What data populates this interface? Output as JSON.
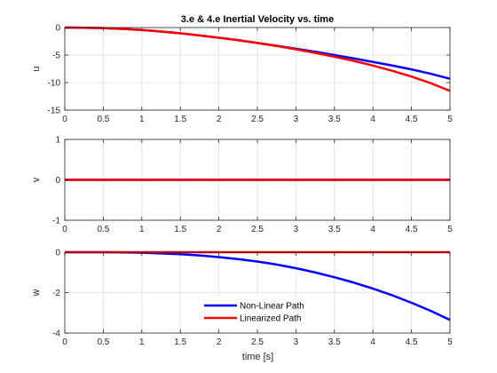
{
  "figure": {
    "background": "#ffffff",
    "axes_color": "#262626",
    "grid_color": "#dfdfdf",
    "series_colors": {
      "nonlinear": "#0000ff",
      "linearized": "#ff0000"
    },
    "xlabel": "time [s]",
    "legend": {
      "placement": "inside bottom-center of third subplot",
      "entries": [
        "Non-Linear Path",
        "Linearized Path"
      ]
    }
  },
  "chart_data": [
    {
      "type": "line",
      "title": "3.e & 4.e Inertial Velocity vs. time",
      "xlabel": "",
      "ylabel": "u",
      "xlim": [
        0,
        5
      ],
      "ylim": [
        -15,
        0
      ],
      "xticks": [
        0,
        0.5,
        1,
        1.5,
        2,
        2.5,
        3,
        3.5,
        4,
        4.5,
        5
      ],
      "xtick_labels": [
        "0",
        "0.5",
        "1",
        "1.5",
        "2",
        "2.5",
        "3",
        "3.5",
        "4",
        "4.5",
        "5"
      ],
      "yticks": [
        -15,
        -10,
        -5,
        0
      ],
      "ytick_labels": [
        "-15",
        "-10",
        "-5",
        "0"
      ],
      "grid": true,
      "x": [
        0,
        0.25,
        0.5,
        0.75,
        1,
        1.25,
        1.5,
        1.75,
        2,
        2.25,
        2.5,
        2.75,
        3,
        3.25,
        3.5,
        3.75,
        4,
        4.25,
        4.5,
        4.75,
        5
      ],
      "series": [
        {
          "name": "Non-Linear Path",
          "color": "#0000ff",
          "values": [
            0,
            -0.03,
            -0.1,
            -0.25,
            -0.45,
            -0.72,
            -1.05,
            -1.43,
            -1.85,
            -2.3,
            -2.8,
            -3.3,
            -3.85,
            -4.4,
            -5.0,
            -5.6,
            -6.25,
            -6.9,
            -7.6,
            -8.4,
            -9.3
          ]
        },
        {
          "name": "Linearized Path",
          "color": "#ff0000",
          "values": [
            0,
            -0.03,
            -0.1,
            -0.25,
            -0.45,
            -0.72,
            -1.05,
            -1.43,
            -1.85,
            -2.3,
            -2.8,
            -3.35,
            -3.95,
            -4.6,
            -5.3,
            -6.05,
            -6.9,
            -7.85,
            -8.9,
            -10.1,
            -11.5
          ]
        }
      ]
    },
    {
      "type": "line",
      "title": "",
      "xlabel": "",
      "ylabel": "v",
      "xlim": [
        0,
        5
      ],
      "ylim": [
        -1,
        1
      ],
      "xticks": [
        0,
        0.5,
        1,
        1.5,
        2,
        2.5,
        3,
        3.5,
        4,
        4.5,
        5
      ],
      "xtick_labels": [
        "0",
        "0.5",
        "1",
        "1.5",
        "2",
        "2.5",
        "3",
        "3.5",
        "4",
        "4.5",
        "5"
      ],
      "yticks": [
        -1,
        0,
        1
      ],
      "ytick_labels": [
        "-1",
        "0",
        "1"
      ],
      "grid": true,
      "x": [
        0,
        5
      ],
      "series": [
        {
          "name": "Non-Linear Path",
          "color": "#0000ff",
          "values": [
            0,
            0
          ]
        },
        {
          "name": "Linearized Path",
          "color": "#ff0000",
          "values": [
            0,
            0
          ]
        }
      ]
    },
    {
      "type": "line",
      "title": "",
      "xlabel": "time [s]",
      "ylabel": "w",
      "xlim": [
        0,
        5
      ],
      "ylim": [
        -4,
        0
      ],
      "xticks": [
        0,
        0.5,
        1,
        1.5,
        2,
        2.5,
        3,
        3.5,
        4,
        4.5,
        5
      ],
      "xtick_labels": [
        "0",
        "0.5",
        "1",
        "1.5",
        "2",
        "2.5",
        "3",
        "3.5",
        "4",
        "4.5",
        "5"
      ],
      "yticks": [
        -4,
        -2,
        0
      ],
      "ytick_labels": [
        "-4",
        "-2",
        "0"
      ],
      "grid": true,
      "x": [
        0,
        0.25,
        0.5,
        0.75,
        1,
        1.25,
        1.5,
        1.75,
        2,
        2.25,
        2.5,
        2.75,
        3,
        3.25,
        3.5,
        3.75,
        4,
        4.25,
        4.5,
        4.75,
        5
      ],
      "series": [
        {
          "name": "Non-Linear Path",
          "color": "#0000ff",
          "values": [
            0,
            0,
            0,
            -0.01,
            -0.03,
            -0.06,
            -0.1,
            -0.16,
            -0.24,
            -0.34,
            -0.46,
            -0.61,
            -0.79,
            -1.0,
            -1.24,
            -1.5,
            -1.8,
            -2.13,
            -2.5,
            -2.9,
            -3.35
          ]
        },
        {
          "name": "Linearized Path",
          "color": "#ff0000",
          "values": [
            0,
            0,
            0,
            0,
            0,
            0,
            0,
            0,
            0,
            0,
            0,
            0,
            0,
            0,
            0,
            0,
            0,
            0,
            0,
            0,
            0
          ]
        }
      ]
    }
  ]
}
